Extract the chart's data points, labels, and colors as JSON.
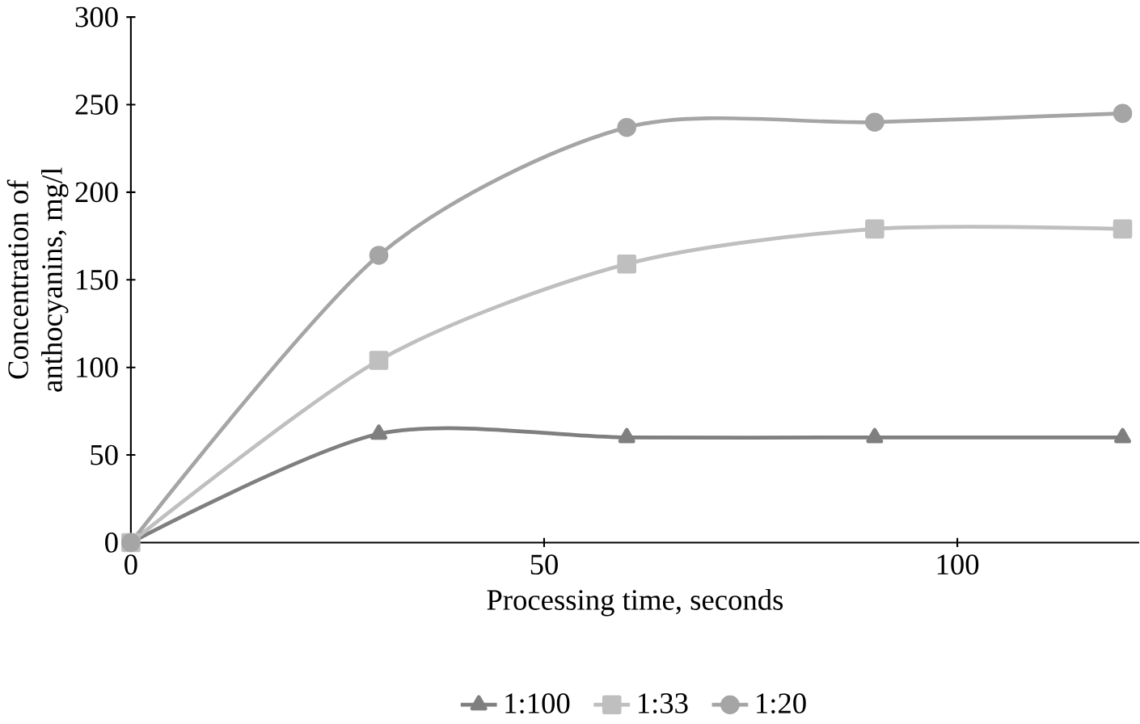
{
  "chart_data": {
    "type": "line",
    "xlabel": "Processing time, seconds",
    "ylabel": "Concentration of anthocyanins, mg/l",
    "x": [
      0,
      30,
      60,
      90,
      120
    ],
    "series": [
      {
        "name": "1:100",
        "color": "#7f7f7f",
        "marker": "triangle",
        "values": [
          0,
          62,
          60,
          60,
          60
        ]
      },
      {
        "name": "1:33",
        "color": "#bfbfbf",
        "marker": "square",
        "values": [
          0,
          104,
          159,
          179,
          179
        ]
      },
      {
        "name": "1:20",
        "color": "#a5a5a5",
        "marker": "circle",
        "values": [
          0,
          164,
          237,
          240,
          245
        ]
      }
    ],
    "xlim": [
      0,
      122
    ],
    "ylim": [
      0,
      300
    ],
    "xticks": [
      0,
      50,
      100
    ],
    "yticks": [
      0,
      50,
      100,
      150,
      200,
      250,
      300
    ],
    "grid": false,
    "legend": "bottom",
    "line_style": "solid"
  }
}
